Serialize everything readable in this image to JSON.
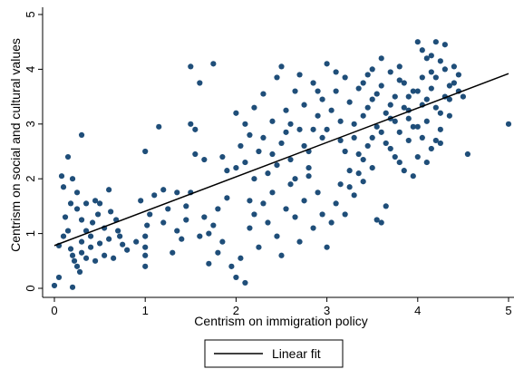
{
  "chart_data": {
    "type": "scatter",
    "xlabel": "Centrism on immigration policy",
    "ylabel": "Centrism on social and cultural values",
    "xlim": [
      0,
      5
    ],
    "ylim": [
      0,
      5
    ],
    "x_ticks": [
      0,
      1,
      2,
      3,
      4,
      5
    ],
    "y_ticks": [
      0,
      1,
      2,
      3,
      4,
      5
    ],
    "grid": false,
    "legend_position": "bottom-center",
    "legend": [
      "Linear fit"
    ],
    "marker_color": "#1f4e79",
    "fit_line": {
      "name": "Linear fit",
      "x": [
        0,
        5
      ],
      "y": [
        0.78,
        3.92
      ],
      "color": "#000000"
    },
    "series": [
      {
        "points": [
          [
            0.0,
            0.05
          ],
          [
            0.05,
            0.2
          ],
          [
            0.2,
            0.02
          ],
          [
            0.05,
            0.78
          ],
          [
            0.1,
            0.95
          ],
          [
            0.15,
            1.05
          ],
          [
            0.2,
            0.6
          ],
          [
            0.22,
            0.5
          ],
          [
            0.25,
            0.4
          ],
          [
            0.28,
            0.3
          ],
          [
            0.3,
            0.65
          ],
          [
            0.35,
            0.55
          ],
          [
            0.4,
            0.75
          ],
          [
            0.45,
            0.5
          ],
          [
            0.5,
            0.82
          ],
          [
            0.55,
            0.6
          ],
          [
            0.6,
            0.9
          ],
          [
            0.65,
            0.55
          ],
          [
            0.7,
            1.05
          ],
          [
            0.75,
            0.8
          ],
          [
            0.8,
            0.7
          ],
          [
            0.12,
            1.3
          ],
          [
            0.18,
            1.55
          ],
          [
            0.25,
            1.45
          ],
          [
            0.3,
            1.25
          ],
          [
            0.35,
            1.55
          ],
          [
            0.42,
            1.2
          ],
          [
            0.48,
            1.35
          ],
          [
            0.5,
            1.55
          ],
          [
            0.55,
            1.1
          ],
          [
            0.62,
            1.4
          ],
          [
            0.1,
            1.85
          ],
          [
            0.15,
            2.4
          ],
          [
            0.2,
            2.0
          ],
          [
            0.3,
            2.8
          ],
          [
            0.25,
            1.75
          ],
          [
            0.35,
            1.05
          ],
          [
            0.4,
            0.95
          ],
          [
            0.45,
            1.6
          ],
          [
            0.6,
            1.8
          ],
          [
            0.08,
            2.05
          ],
          [
            0.68,
            1.25
          ],
          [
            0.72,
            0.95
          ],
          [
            0.18,
            0.72
          ],
          [
            0.3,
            0.85
          ],
          [
            1.0,
            0.4
          ],
          [
            1.0,
            0.6
          ],
          [
            1.0,
            0.75
          ],
          [
            1.0,
            0.95
          ],
          [
            1.02,
            1.15
          ],
          [
            1.05,
            1.35
          ],
          [
            1.1,
            1.7
          ],
          [
            1.15,
            2.95
          ],
          [
            1.2,
            1.2
          ],
          [
            1.25,
            1.45
          ],
          [
            1.3,
            0.65
          ],
          [
            1.35,
            1.05
          ],
          [
            1.4,
            0.9
          ],
          [
            1.45,
            1.5
          ],
          [
            1.5,
            1.75
          ],
          [
            1.55,
            2.45
          ],
          [
            1.6,
            0.95
          ],
          [
            1.65,
            1.3
          ],
          [
            1.7,
            0.45
          ],
          [
            1.75,
            1.15
          ],
          [
            1.8,
            1.45
          ],
          [
            1.85,
            0.85
          ],
          [
            1.9,
            1.65
          ],
          [
            1.95,
            0.4
          ],
          [
            1.0,
            2.5
          ],
          [
            1.5,
            4.05
          ],
          [
            1.6,
            3.75
          ],
          [
            1.75,
            4.1
          ],
          [
            1.55,
            2.9
          ],
          [
            1.65,
            2.35
          ],
          [
            1.5,
            3.0
          ],
          [
            1.9,
            2.15
          ],
          [
            1.85,
            2.4
          ],
          [
            0.9,
            0.85
          ],
          [
            0.95,
            1.6
          ],
          [
            1.2,
            1.8
          ],
          [
            1.35,
            1.75
          ],
          [
            1.45,
            1.25
          ],
          [
            1.7,
            1.0
          ],
          [
            1.8,
            0.65
          ],
          [
            2.0,
            0.2
          ],
          [
            2.05,
            0.55
          ],
          [
            2.1,
            0.1
          ],
          [
            2.15,
            1.1
          ],
          [
            2.2,
            1.35
          ],
          [
            2.25,
            0.75
          ],
          [
            2.3,
            1.55
          ],
          [
            2.35,
            1.2
          ],
          [
            2.4,
            1.75
          ],
          [
            2.45,
            0.95
          ],
          [
            2.5,
            0.6
          ],
          [
            2.55,
            1.45
          ],
          [
            2.6,
            1.9
          ],
          [
            2.65,
            1.3
          ],
          [
            2.7,
            0.85
          ],
          [
            2.75,
            1.6
          ],
          [
            2.8,
            2.05
          ],
          [
            2.85,
            1.1
          ],
          [
            2.9,
            1.75
          ],
          [
            2.95,
            1.35
          ],
          [
            2.0,
            2.2
          ],
          [
            2.05,
            2.6
          ],
          [
            2.1,
            3.0
          ],
          [
            2.15,
            2.8
          ],
          [
            2.2,
            3.3
          ],
          [
            2.25,
            2.5
          ],
          [
            2.3,
            3.55
          ],
          [
            2.35,
            2.1
          ],
          [
            2.4,
            3.05
          ],
          [
            2.45,
            3.85
          ],
          [
            2.5,
            2.65
          ],
          [
            2.55,
            3.25
          ],
          [
            2.6,
            2.35
          ],
          [
            2.65,
            3.6
          ],
          [
            2.7,
            2.9
          ],
          [
            2.75,
            3.35
          ],
          [
            2.8,
            2.5
          ],
          [
            2.85,
            3.75
          ],
          [
            2.9,
            3.15
          ],
          [
            2.95,
            2.75
          ],
          [
            2.0,
            3.2
          ],
          [
            2.1,
            2.3
          ],
          [
            2.2,
            2.0
          ],
          [
            2.3,
            2.75
          ],
          [
            2.4,
            2.45
          ],
          [
            2.5,
            4.05
          ],
          [
            2.6,
            3.0
          ],
          [
            2.7,
            3.9
          ],
          [
            2.8,
            2.2
          ],
          [
            2.9,
            3.6
          ],
          [
            2.55,
            2.85
          ],
          [
            2.65,
            2.0
          ],
          [
            2.75,
            2.6
          ],
          [
            2.85,
            2.9
          ],
          [
            2.95,
            3.45
          ],
          [
            2.15,
            1.6
          ],
          [
            2.45,
            2.25
          ],
          [
            3.0,
            0.75
          ],
          [
            3.05,
            1.2
          ],
          [
            3.1,
            1.55
          ],
          [
            3.15,
            1.9
          ],
          [
            3.2,
            1.35
          ],
          [
            3.25,
            2.15
          ],
          [
            3.3,
            1.7
          ],
          [
            3.35,
            2.45
          ],
          [
            3.4,
            1.95
          ],
          [
            3.45,
            2.6
          ],
          [
            3.5,
            2.2
          ],
          [
            3.55,
            1.25
          ],
          [
            3.6,
            2.85
          ],
          [
            3.65,
            1.5
          ],
          [
            3.7,
            2.55
          ],
          [
            3.75,
            3.05
          ],
          [
            3.8,
            2.3
          ],
          [
            3.85,
            3.3
          ],
          [
            3.9,
            2.7
          ],
          [
            3.95,
            2.05
          ],
          [
            3.0,
            2.9
          ],
          [
            3.05,
            3.25
          ],
          [
            3.1,
            3.6
          ],
          [
            3.15,
            3.05
          ],
          [
            3.2,
            3.85
          ],
          [
            3.25,
            3.4
          ],
          [
            3.3,
            2.75
          ],
          [
            3.35,
            3.65
          ],
          [
            3.4,
            3.15
          ],
          [
            3.45,
            3.9
          ],
          [
            3.5,
            3.45
          ],
          [
            3.55,
            2.95
          ],
          [
            3.6,
            3.7
          ],
          [
            3.65,
            3.2
          ],
          [
            3.7,
            3.95
          ],
          [
            3.75,
            3.5
          ],
          [
            3.8,
            2.85
          ],
          [
            3.85,
            3.75
          ],
          [
            3.9,
            3.25
          ],
          [
            3.95,
            3.6
          ],
          [
            3.0,
            4.1
          ],
          [
            3.1,
            3.95
          ],
          [
            3.2,
            2.5
          ],
          [
            3.3,
            3.0
          ],
          [
            3.4,
            2.35
          ],
          [
            3.5,
            2.75
          ],
          [
            3.6,
            4.2
          ],
          [
            3.7,
            3.35
          ],
          [
            3.8,
            4.05
          ],
          [
            3.9,
            3.1
          ],
          [
            3.5,
            4.0
          ],
          [
            3.65,
            2.65
          ],
          [
            3.75,
            2.4
          ],
          [
            3.85,
            2.15
          ],
          [
            3.95,
            2.95
          ],
          [
            3.15,
            2.7
          ],
          [
            3.35,
            2.1
          ],
          [
            3.45,
            3.3
          ],
          [
            3.55,
            3.55
          ],
          [
            3.25,
            1.85
          ],
          [
            3.6,
            1.2
          ],
          [
            3.4,
            3.75
          ],
          [
            3.7,
            3.1
          ],
          [
            3.8,
            3.8
          ],
          [
            3.9,
            3.5
          ],
          [
            4.0,
            2.4
          ],
          [
            4.05,
            2.75
          ],
          [
            4.1,
            3.05
          ],
          [
            4.15,
            2.55
          ],
          [
            4.2,
            3.3
          ],
          [
            4.25,
            2.9
          ],
          [
            4.3,
            3.5
          ],
          [
            4.35,
            3.15
          ],
          [
            4.4,
            3.75
          ],
          [
            4.45,
            3.9
          ],
          [
            4.5,
            3.5
          ],
          [
            4.55,
            2.45
          ],
          [
            4.0,
            3.6
          ],
          [
            4.05,
            3.85
          ],
          [
            4.1,
            4.2
          ],
          [
            4.15,
            3.95
          ],
          [
            4.2,
            4.5
          ],
          [
            4.25,
            3.2
          ],
          [
            4.3,
            4.45
          ],
          [
            4.35,
            3.7
          ],
          [
            4.4,
            4.05
          ],
          [
            4.0,
            4.5
          ],
          [
            4.05,
            3.35
          ],
          [
            4.1,
            2.3
          ],
          [
            4.15,
            4.25
          ],
          [
            4.2,
            3.85
          ],
          [
            4.25,
            2.65
          ],
          [
            4.3,
            4.0
          ],
          [
            4.35,
            3.45
          ],
          [
            4.45,
            3.6
          ],
          [
            4.0,
            2.95
          ],
          [
            4.1,
            3.45
          ],
          [
            4.2,
            2.7
          ],
          [
            4.15,
            3.65
          ],
          [
            4.05,
            4.35
          ],
          [
            4.25,
            4.15
          ],
          [
            5.0,
            3.0
          ]
        ]
      }
    ]
  }
}
